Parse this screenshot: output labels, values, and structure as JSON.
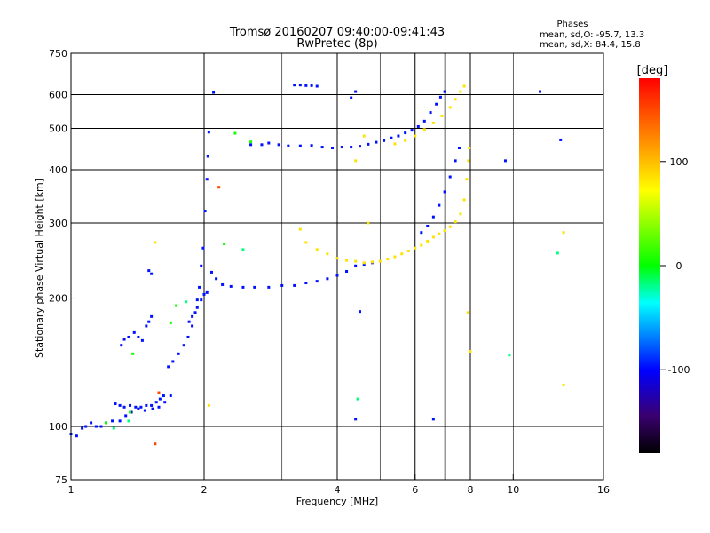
{
  "chart_data": {
    "type": "scatter",
    "title": "Tromsø 20160207 09:40:00-09:41:43",
    "subtitle": "RwPretec (8p)",
    "xlabel": "Frequency [MHz]",
    "ylabel": "Stationary phase Virtual Height [km]",
    "x_scale": "log",
    "y_scale": "log",
    "xlim": [
      1,
      16
    ],
    "ylim": [
      75,
      750
    ],
    "x_ticks": [
      1,
      2,
      4,
      6,
      8,
      10,
      16
    ],
    "x_tick_labels": [
      "1",
      "2",
      "4",
      "6",
      "8",
      "10",
      "16"
    ],
    "x_grid": [
      2,
      4,
      6,
      8
    ],
    "x_minor": [
      3,
      5,
      7,
      9,
      10
    ],
    "y_ticks": [
      75,
      100,
      200,
      300,
      400,
      500,
      600,
      750
    ],
    "y_tick_labels": [
      "75",
      "100",
      "200",
      "300",
      "400",
      "500",
      "600",
      "750"
    ],
    "y_grid": [
      100,
      200,
      300,
      400,
      500,
      600
    ],
    "grid": true,
    "stats": {
      "heading": "Phases",
      "line_o": "mean, sd,O: -95.7, 13.3",
      "line_x": "mean, sd,X:  84.4, 15.8"
    },
    "colorbar": {
      "label": "[deg]",
      "range": [
        -180,
        180
      ],
      "ticks": [
        100,
        0,
        -100
      ],
      "tick_labels": [
        "100",
        "0",
        "-100"
      ],
      "placement": "right"
    },
    "series": [
      {
        "phase": -96,
        "points": [
          [
            1.0,
            96
          ],
          [
            1.03,
            95
          ],
          [
            1.06,
            99
          ],
          [
            1.08,
            100
          ],
          [
            1.11,
            102
          ],
          [
            1.14,
            100
          ],
          [
            1.17,
            100
          ],
          [
            1.2,
            102
          ],
          [
            1.24,
            103
          ],
          [
            1.29,
            103
          ],
          [
            1.33,
            106
          ],
          [
            1.37,
            108
          ],
          [
            1.42,
            110
          ],
          [
            1.47,
            109
          ],
          [
            1.53,
            110
          ],
          [
            1.58,
            111
          ],
          [
            1.63,
            114
          ],
          [
            1.68,
            118
          ],
          [
            1.26,
            113
          ],
          [
            1.29,
            112
          ],
          [
            1.32,
            111
          ],
          [
            1.36,
            112
          ],
          [
            1.4,
            111
          ],
          [
            1.44,
            111
          ],
          [
            1.48,
            112
          ],
          [
            1.52,
            112
          ],
          [
            1.56,
            114
          ],
          [
            1.59,
            116
          ],
          [
            1.62,
            118
          ],
          [
            1.3,
            155
          ],
          [
            1.32,
            160
          ],
          [
            1.35,
            162
          ],
          [
            1.39,
            166
          ],
          [
            1.42,
            162
          ],
          [
            1.45,
            159
          ],
          [
            1.48,
            172
          ],
          [
            1.5,
            176
          ],
          [
            1.52,
            181
          ],
          [
            1.5,
            232
          ],
          [
            1.52,
            228
          ],
          [
            1.66,
            138
          ],
          [
            1.7,
            142
          ],
          [
            1.75,
            148
          ],
          [
            1.8,
            155
          ],
          [
            1.84,
            162
          ],
          [
            1.88,
            172
          ],
          [
            1.91,
            185
          ],
          [
            1.93,
            198
          ],
          [
            1.95,
            212
          ],
          [
            1.97,
            238
          ],
          [
            1.99,
            262
          ],
          [
            2.01,
            320
          ],
          [
            2.03,
            380
          ],
          [
            2.04,
            430
          ],
          [
            2.05,
            490
          ],
          [
            1.85,
            176
          ],
          [
            1.88,
            181
          ],
          [
            1.93,
            190
          ],
          [
            1.97,
            198
          ],
          [
            2.0,
            204
          ],
          [
            2.03,
            206
          ],
          [
            2.08,
            230
          ],
          [
            2.13,
            222
          ],
          [
            2.2,
            215
          ],
          [
            2.3,
            213
          ],
          [
            2.45,
            212
          ],
          [
            2.6,
            212
          ],
          [
            2.8,
            212
          ],
          [
            3.0,
            214
          ],
          [
            3.2,
            214
          ],
          [
            3.4,
            217
          ],
          [
            3.6,
            219
          ],
          [
            3.8,
            222
          ],
          [
            4.0,
            226
          ],
          [
            4.2,
            231
          ],
          [
            4.4,
            238
          ],
          [
            4.6,
            240
          ],
          [
            4.8,
            242
          ],
          [
            2.55,
            458
          ],
          [
            2.7,
            458
          ],
          [
            2.8,
            462
          ],
          [
            2.95,
            458
          ],
          [
            3.1,
            455
          ],
          [
            3.3,
            455
          ],
          [
            3.5,
            456
          ],
          [
            3.7,
            452
          ],
          [
            3.9,
            450
          ],
          [
            4.1,
            452
          ],
          [
            4.3,
            452
          ],
          [
            4.5,
            454
          ],
          [
            4.7,
            459
          ],
          [
            4.9,
            464
          ],
          [
            5.1,
            468
          ],
          [
            5.3,
            475
          ],
          [
            5.5,
            480
          ],
          [
            5.7,
            488
          ],
          [
            5.9,
            495
          ],
          [
            6.1,
            505
          ],
          [
            6.3,
            520
          ],
          [
            6.5,
            545
          ],
          [
            6.7,
            570
          ],
          [
            6.85,
            592
          ],
          [
            7.0,
            610
          ],
          [
            3.2,
            632
          ],
          [
            3.3,
            632
          ],
          [
            3.4,
            630
          ],
          [
            3.5,
            630
          ],
          [
            3.6,
            628
          ],
          [
            6.2,
            285
          ],
          [
            6.4,
            295
          ],
          [
            6.6,
            310
          ],
          [
            6.8,
            330
          ],
          [
            7.0,
            355
          ],
          [
            7.2,
            385
          ],
          [
            7.4,
            420
          ],
          [
            7.55,
            450
          ],
          [
            4.3,
            590
          ],
          [
            4.4,
            610
          ],
          [
            9.6,
            420
          ],
          [
            11.5,
            610
          ],
          [
            12.8,
            470
          ],
          [
            4.4,
            104
          ],
          [
            6.6,
            104
          ],
          [
            4.5,
            186
          ],
          [
            2.1,
            607
          ]
        ]
      },
      {
        "phase": 82,
        "points": [
          [
            3.4,
            270
          ],
          [
            3.6,
            260
          ],
          [
            3.8,
            254
          ],
          [
            4.0,
            248
          ],
          [
            4.2,
            245
          ],
          [
            4.4,
            244
          ],
          [
            4.6,
            242
          ],
          [
            4.8,
            243
          ],
          [
            5.0,
            244
          ],
          [
            5.2,
            247
          ],
          [
            5.4,
            250
          ],
          [
            5.6,
            254
          ],
          [
            5.8,
            258
          ],
          [
            6.0,
            262
          ],
          [
            6.2,
            266
          ],
          [
            6.4,
            272
          ],
          [
            6.6,
            278
          ],
          [
            6.8,
            283
          ],
          [
            7.0,
            288
          ],
          [
            7.2,
            294
          ],
          [
            7.4,
            302
          ],
          [
            7.6,
            315
          ],
          [
            7.75,
            340
          ],
          [
            7.85,
            380
          ],
          [
            7.92,
            420
          ],
          [
            7.95,
            450
          ],
          [
            5.4,
            460
          ],
          [
            5.7,
            468
          ],
          [
            6.0,
            480
          ],
          [
            6.3,
            497
          ],
          [
            6.6,
            515
          ],
          [
            6.9,
            535
          ],
          [
            7.2,
            560
          ],
          [
            7.4,
            585
          ],
          [
            7.6,
            610
          ],
          [
            7.75,
            628
          ],
          [
            3.3,
            290
          ],
          [
            4.4,
            420
          ],
          [
            4.6,
            480
          ],
          [
            4.7,
            300
          ],
          [
            7.9,
            185
          ],
          [
            8.0,
            150
          ],
          [
            13.0,
            125
          ],
          [
            13.0,
            285
          ],
          [
            2.05,
            112
          ],
          [
            1.55,
            270
          ]
        ]
      },
      {
        "phase": 5,
        "points": [
          [
            1.2,
            102
          ],
          [
            1.36,
            108
          ],
          [
            1.38,
            148
          ],
          [
            1.68,
            175
          ],
          [
            1.73,
            192
          ],
          [
            2.22,
            268
          ],
          [
            2.55,
            465
          ],
          [
            2.35,
            487
          ]
        ]
      },
      {
        "phase": -20,
        "points": [
          [
            1.35,
            103
          ],
          [
            1.82,
            196
          ],
          [
            2.45,
            260
          ],
          [
            4.45,
            116
          ],
          [
            9.8,
            147
          ],
          [
            12.6,
            255
          ],
          [
            1.25,
            99
          ]
        ]
      },
      {
        "phase": 150,
        "points": [
          [
            1.55,
            91
          ],
          [
            2.16,
            364
          ],
          [
            1.58,
            120
          ]
        ]
      }
    ]
  }
}
